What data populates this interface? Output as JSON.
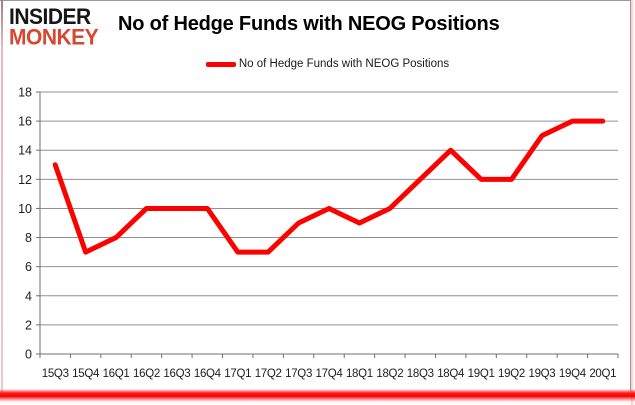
{
  "logo": {
    "line1": "INSIDER",
    "line2": "MONKEY"
  },
  "header": {
    "title": "No of Hedge Funds with NEOG Positions"
  },
  "legend": {
    "label": "No of Hedge Funds with NEOG Positions"
  },
  "chart_data": {
    "type": "line",
    "title": "No of Hedge Funds with NEOG Positions",
    "categories": [
      "15Q3",
      "15Q4",
      "16Q1",
      "16Q2",
      "16Q3",
      "16Q4",
      "17Q1",
      "17Q2",
      "17Q3",
      "17Q4",
      "18Q1",
      "18Q2",
      "18Q3",
      "18Q4",
      "19Q1",
      "19Q2",
      "19Q3",
      "19Q4",
      "20Q1"
    ],
    "series": [
      {
        "name": "No of Hedge Funds with NEOG Positions",
        "color": "#ff0000",
        "values": [
          13,
          7,
          8,
          10,
          10,
          10,
          7,
          7,
          9,
          10,
          9,
          10,
          12,
          14,
          12,
          12,
          15,
          16,
          16
        ]
      }
    ],
    "ylim": [
      0,
      18
    ],
    "ytick_step": 2,
    "yticks": [
      0,
      2,
      4,
      6,
      8,
      10,
      12,
      14,
      16,
      18
    ],
    "xlabel": "",
    "ylabel": "",
    "grid": "horizontal",
    "legend_position": "top-center"
  },
  "colors": {
    "series_red": "#ff0000",
    "logo_red": "#d8462f",
    "accent_bar_red": "#f50000",
    "gridline": "#909090",
    "axis": "#6f6f6f",
    "tick_text": "#1d1d1d"
  }
}
